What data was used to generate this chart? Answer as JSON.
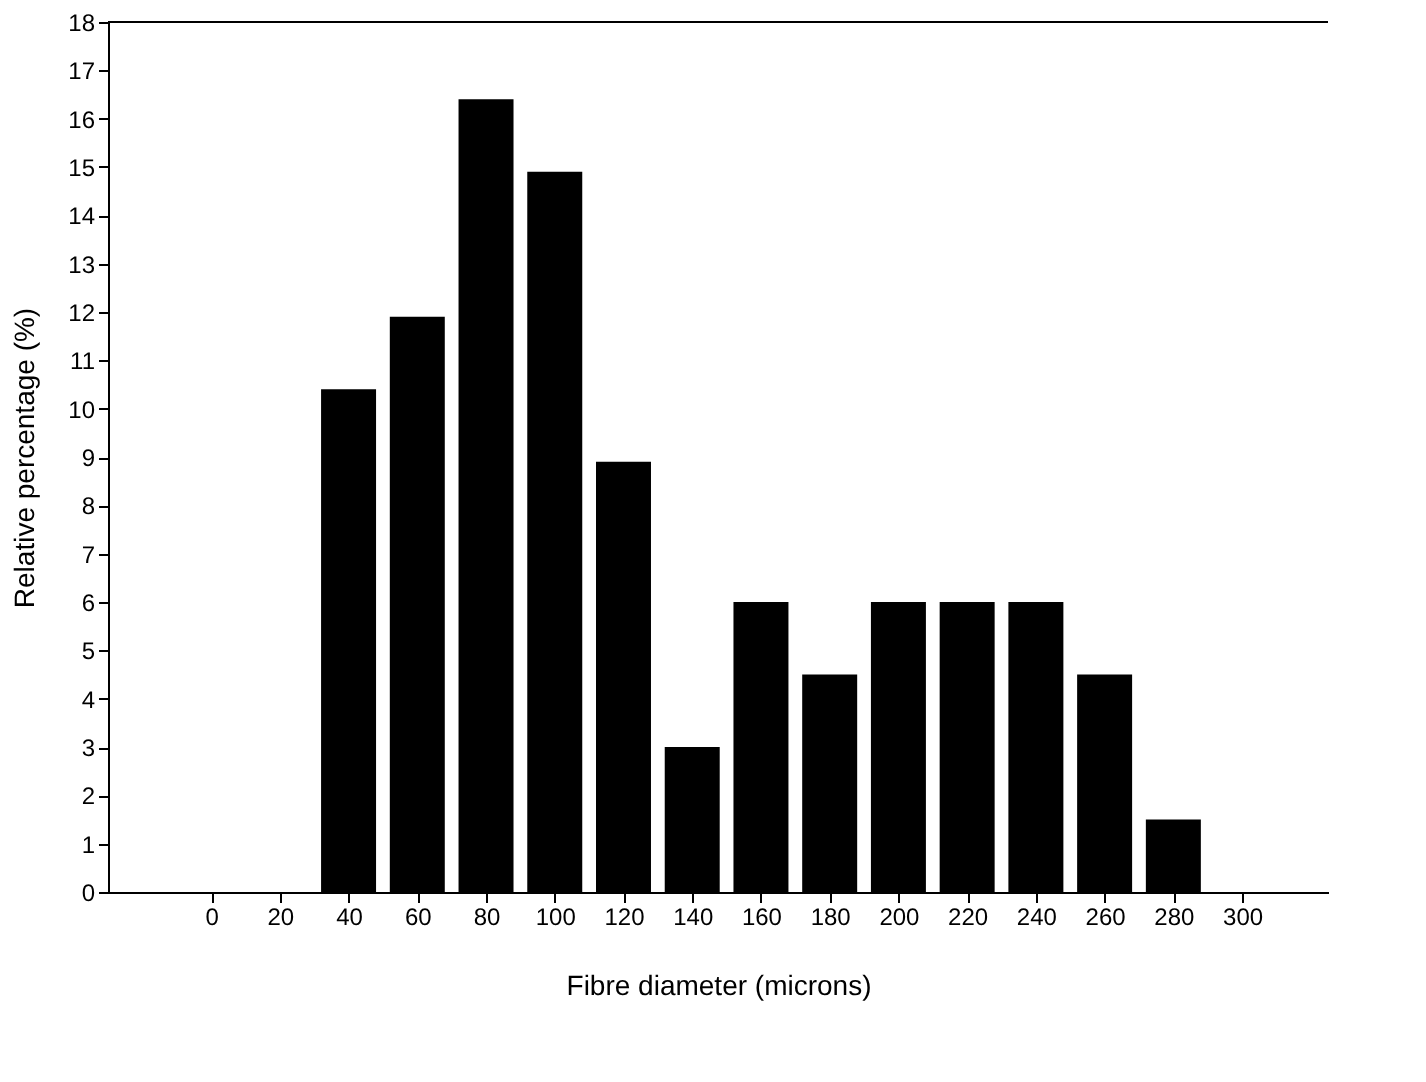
{
  "chart_data": {
    "type": "bar",
    "xlabel": "Fibre diameter (microns)",
    "ylabel": "Relative percentage (%)",
    "x": [
      40,
      60,
      80,
      100,
      120,
      140,
      160,
      180,
      200,
      220,
      240,
      260,
      280
    ],
    "values": [
      10.4,
      11.9,
      16.4,
      14.9,
      8.9,
      3,
      6,
      4.5,
      6,
      6,
      6,
      4.5,
      1.5
    ],
    "color": "#000000",
    "xlim": [
      -30,
      325
    ],
    "xticks": [
      0,
      20,
      40,
      60,
      80,
      100,
      120,
      140,
      160,
      180,
      200,
      220,
      240,
      260,
      280,
      300
    ],
    "ylim": [
      0,
      18
    ],
    "yticks": [
      0,
      1,
      2,
      3,
      4,
      5,
      6,
      7,
      8,
      9,
      10,
      11,
      12,
      13,
      14,
      15,
      16,
      17,
      18
    ],
    "grid": false
  }
}
